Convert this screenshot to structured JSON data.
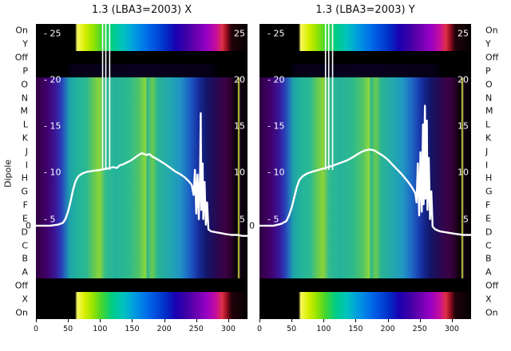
{
  "chart_data": {
    "type": "heatmap+line",
    "ylabel": "Dipole",
    "line_color": "#ffffff",
    "xlim": [
      0,
      330
    ],
    "x_ticks": [
      0,
      50,
      100,
      150,
      200,
      250,
      300
    ],
    "value_ticks_labeled": [
      25,
      20,
      15,
      10,
      5
    ],
    "value_lim": [
      -5.75,
      26.0
    ],
    "zero_label": "0",
    "rows": [
      {
        "label": "On",
        "type": "bright"
      },
      {
        "label": "Y",
        "type": "bright"
      },
      {
        "label": "Off",
        "type": "off"
      },
      {
        "label": "P",
        "type": "offdim"
      },
      {
        "label": "O",
        "type": "dipole"
      },
      {
        "label": "N",
        "type": "dipole"
      },
      {
        "label": "M",
        "type": "dipole"
      },
      {
        "label": "L",
        "type": "dipole"
      },
      {
        "label": "K",
        "type": "dipole"
      },
      {
        "label": "J",
        "type": "dipole"
      },
      {
        "label": "I",
        "type": "dipole"
      },
      {
        "label": "H",
        "type": "dipole"
      },
      {
        "label": "G",
        "type": "dipole"
      },
      {
        "label": "F",
        "type": "dipole"
      },
      {
        "label": "E",
        "type": "dipole"
      },
      {
        "label": "D",
        "type": "dipole"
      },
      {
        "label": "C",
        "type": "dipole"
      },
      {
        "label": "B",
        "type": "dipole"
      },
      {
        "label": "A",
        "type": "dipole"
      },
      {
        "label": "Off",
        "type": "off"
      },
      {
        "label": "X",
        "type": "bright"
      },
      {
        "label": "On",
        "type": "bright"
      }
    ],
    "colormap": {
      "bright": [
        [
          0,
          "#000000"
        ],
        [
          18.5,
          "#010001"
        ],
        [
          19.5,
          "#f8f860"
        ],
        [
          23,
          "#d8ee00"
        ],
        [
          27,
          "#96e400"
        ],
        [
          31,
          "#46d62e"
        ],
        [
          36,
          "#00cc84"
        ],
        [
          41,
          "#00c4bc"
        ],
        [
          46,
          "#00a0dc"
        ],
        [
          51,
          "#0078ea"
        ],
        [
          56,
          "#0052e0"
        ],
        [
          61,
          "#0030c8"
        ],
        [
          66,
          "#1a00b2"
        ],
        [
          71,
          "#3e00a6"
        ],
        [
          76,
          "#6c00b0"
        ],
        [
          81,
          "#9a00c4"
        ],
        [
          85,
          "#c40d9e"
        ],
        [
          88,
          "#de3048"
        ],
        [
          90.5,
          "#8a0a1a"
        ],
        [
          92.5,
          "#20020a"
        ],
        [
          100,
          "#050002"
        ]
      ],
      "off": [
        [
          0,
          "#000000"
        ],
        [
          100,
          "#000000"
        ]
      ],
      "offdim": [
        [
          0,
          "#000000"
        ],
        [
          14,
          "#000000"
        ],
        [
          17,
          "#050016"
        ],
        [
          50,
          "#08001f"
        ],
        [
          82,
          "#050016"
        ],
        [
          87,
          "#000000"
        ],
        [
          100,
          "#000000"
        ]
      ],
      "dipole": [
        [
          0,
          "#2e0040"
        ],
        [
          5,
          "#41006a"
        ],
        [
          9,
          "#3a1496"
        ],
        [
          12,
          "#2a3eb8"
        ],
        [
          14,
          "#2272bb"
        ],
        [
          16,
          "#1fa3a8"
        ],
        [
          20,
          "#23b49a"
        ],
        [
          24,
          "#2cb992"
        ],
        [
          27,
          "#5ec858"
        ],
        [
          30,
          "#8cd438"
        ],
        [
          33,
          "#30ba90"
        ],
        [
          38,
          "#24b29b"
        ],
        [
          44,
          "#2eba8c"
        ],
        [
          49,
          "#55c566"
        ],
        [
          51.8,
          "#8ed83a"
        ],
        [
          52.6,
          "#2cb78e"
        ],
        [
          55,
          "#6ccb4e"
        ],
        [
          57.5,
          "#2ab392"
        ],
        [
          63,
          "#23a8ae"
        ],
        [
          68,
          "#2095c2"
        ],
        [
          72,
          "#1e68c6"
        ],
        [
          75,
          "#1a42b2"
        ],
        [
          77,
          "#162c9a"
        ],
        [
          79,
          "#12207e"
        ],
        [
          81,
          "#141467"
        ],
        [
          84,
          "#220c58"
        ],
        [
          87,
          "#33044a"
        ],
        [
          90,
          "#3a0140"
        ],
        [
          92,
          "#2a002e"
        ],
        [
          94,
          "#120010"
        ],
        [
          95.2,
          "#0a0006"
        ],
        [
          95.8,
          "#dce54e"
        ],
        [
          96.6,
          "#0e0012"
        ],
        [
          100,
          "#060004"
        ]
      ]
    },
    "panels": [
      {
        "title": "1.3 (LBA3=2003) X",
        "spikes": [
          104,
          109,
          115
        ],
        "line": [
          [
            0,
            4.3
          ],
          [
            22,
            4.3
          ],
          [
            34,
            4.4
          ],
          [
            42,
            4.6
          ],
          [
            46,
            5.0
          ],
          [
            50,
            5.8
          ],
          [
            54,
            6.9
          ],
          [
            58,
            8.2
          ],
          [
            62,
            9.1
          ],
          [
            66,
            9.6
          ],
          [
            72,
            9.9
          ],
          [
            80,
            10.1
          ],
          [
            90,
            10.2
          ],
          [
            100,
            10.3
          ],
          [
            108,
            10.4
          ],
          [
            115,
            10.5
          ],
          [
            121,
            10.6
          ],
          [
            126,
            10.5
          ],
          [
            131,
            10.8
          ],
          [
            136,
            10.9
          ],
          [
            142,
            11.1
          ],
          [
            148,
            11.3
          ],
          [
            154,
            11.6
          ],
          [
            160,
            11.9
          ],
          [
            165,
            12.1
          ],
          [
            169,
            12.0
          ],
          [
            173,
            11.9
          ],
          [
            177,
            12.0
          ],
          [
            182,
            11.7
          ],
          [
            188,
            11.5
          ],
          [
            195,
            11.2
          ],
          [
            202,
            10.9
          ],
          [
            210,
            10.5
          ],
          [
            218,
            10.1
          ],
          [
            226,
            9.8
          ],
          [
            232,
            9.5
          ],
          [
            238,
            9.1
          ],
          [
            243,
            8.7
          ],
          [
            246,
            7.6
          ],
          [
            248,
            10.3
          ],
          [
            250,
            5.6
          ],
          [
            252,
            9.8
          ],
          [
            254,
            5.0
          ],
          [
            256,
            10.1
          ],
          [
            257,
            16.4
          ],
          [
            258,
            6.0
          ],
          [
            260,
            11.0
          ],
          [
            261,
            5.0
          ],
          [
            263,
            9.0
          ],
          [
            265,
            4.4
          ],
          [
            267,
            6.8
          ],
          [
            269,
            3.9
          ],
          [
            273,
            3.7
          ],
          [
            280,
            3.6
          ],
          [
            288,
            3.5
          ],
          [
            296,
            3.4
          ],
          [
            305,
            3.3
          ],
          [
            314,
            3.3
          ],
          [
            322,
            3.2
          ],
          [
            330,
            3.2
          ]
        ]
      },
      {
        "title": "1.3 (LBA3=2003) Y",
        "spikes": [
          103,
          108,
          114
        ],
        "line": [
          [
            0,
            4.3
          ],
          [
            22,
            4.3
          ],
          [
            34,
            4.5
          ],
          [
            42,
            4.8
          ],
          [
            46,
            5.4
          ],
          [
            50,
            6.2
          ],
          [
            54,
            7.3
          ],
          [
            58,
            8.4
          ],
          [
            62,
            9.2
          ],
          [
            67,
            9.6
          ],
          [
            74,
            9.9
          ],
          [
            82,
            10.1
          ],
          [
            92,
            10.3
          ],
          [
            102,
            10.5
          ],
          [
            112,
            10.7
          ],
          [
            120,
            10.9
          ],
          [
            128,
            11.1
          ],
          [
            136,
            11.3
          ],
          [
            144,
            11.6
          ],
          [
            151,
            11.9
          ],
          [
            158,
            12.2
          ],
          [
            165,
            12.4
          ],
          [
            172,
            12.5
          ],
          [
            179,
            12.4
          ],
          [
            186,
            12.1
          ],
          [
            193,
            11.8
          ],
          [
            200,
            11.4
          ],
          [
            207,
            10.9
          ],
          [
            214,
            10.4
          ],
          [
            221,
            9.9
          ],
          [
            227,
            9.4
          ],
          [
            233,
            8.9
          ],
          [
            239,
            8.3
          ],
          [
            243,
            7.8
          ],
          [
            245,
            6.8
          ],
          [
            247,
            11.0
          ],
          [
            249,
            5.4
          ],
          [
            251,
            12.2
          ],
          [
            253,
            5.8
          ],
          [
            255,
            15.2
          ],
          [
            256,
            6.6
          ],
          [
            258,
            17.2
          ],
          [
            259,
            7.2
          ],
          [
            261,
            15.6
          ],
          [
            262,
            6.0
          ],
          [
            264,
            11.6
          ],
          [
            266,
            5.0
          ],
          [
            268,
            8.0
          ],
          [
            270,
            4.2
          ],
          [
            274,
            3.9
          ],
          [
            281,
            3.7
          ],
          [
            289,
            3.6
          ],
          [
            298,
            3.5
          ],
          [
            308,
            3.4
          ],
          [
            318,
            3.3
          ],
          [
            330,
            3.3
          ]
        ]
      }
    ]
  }
}
